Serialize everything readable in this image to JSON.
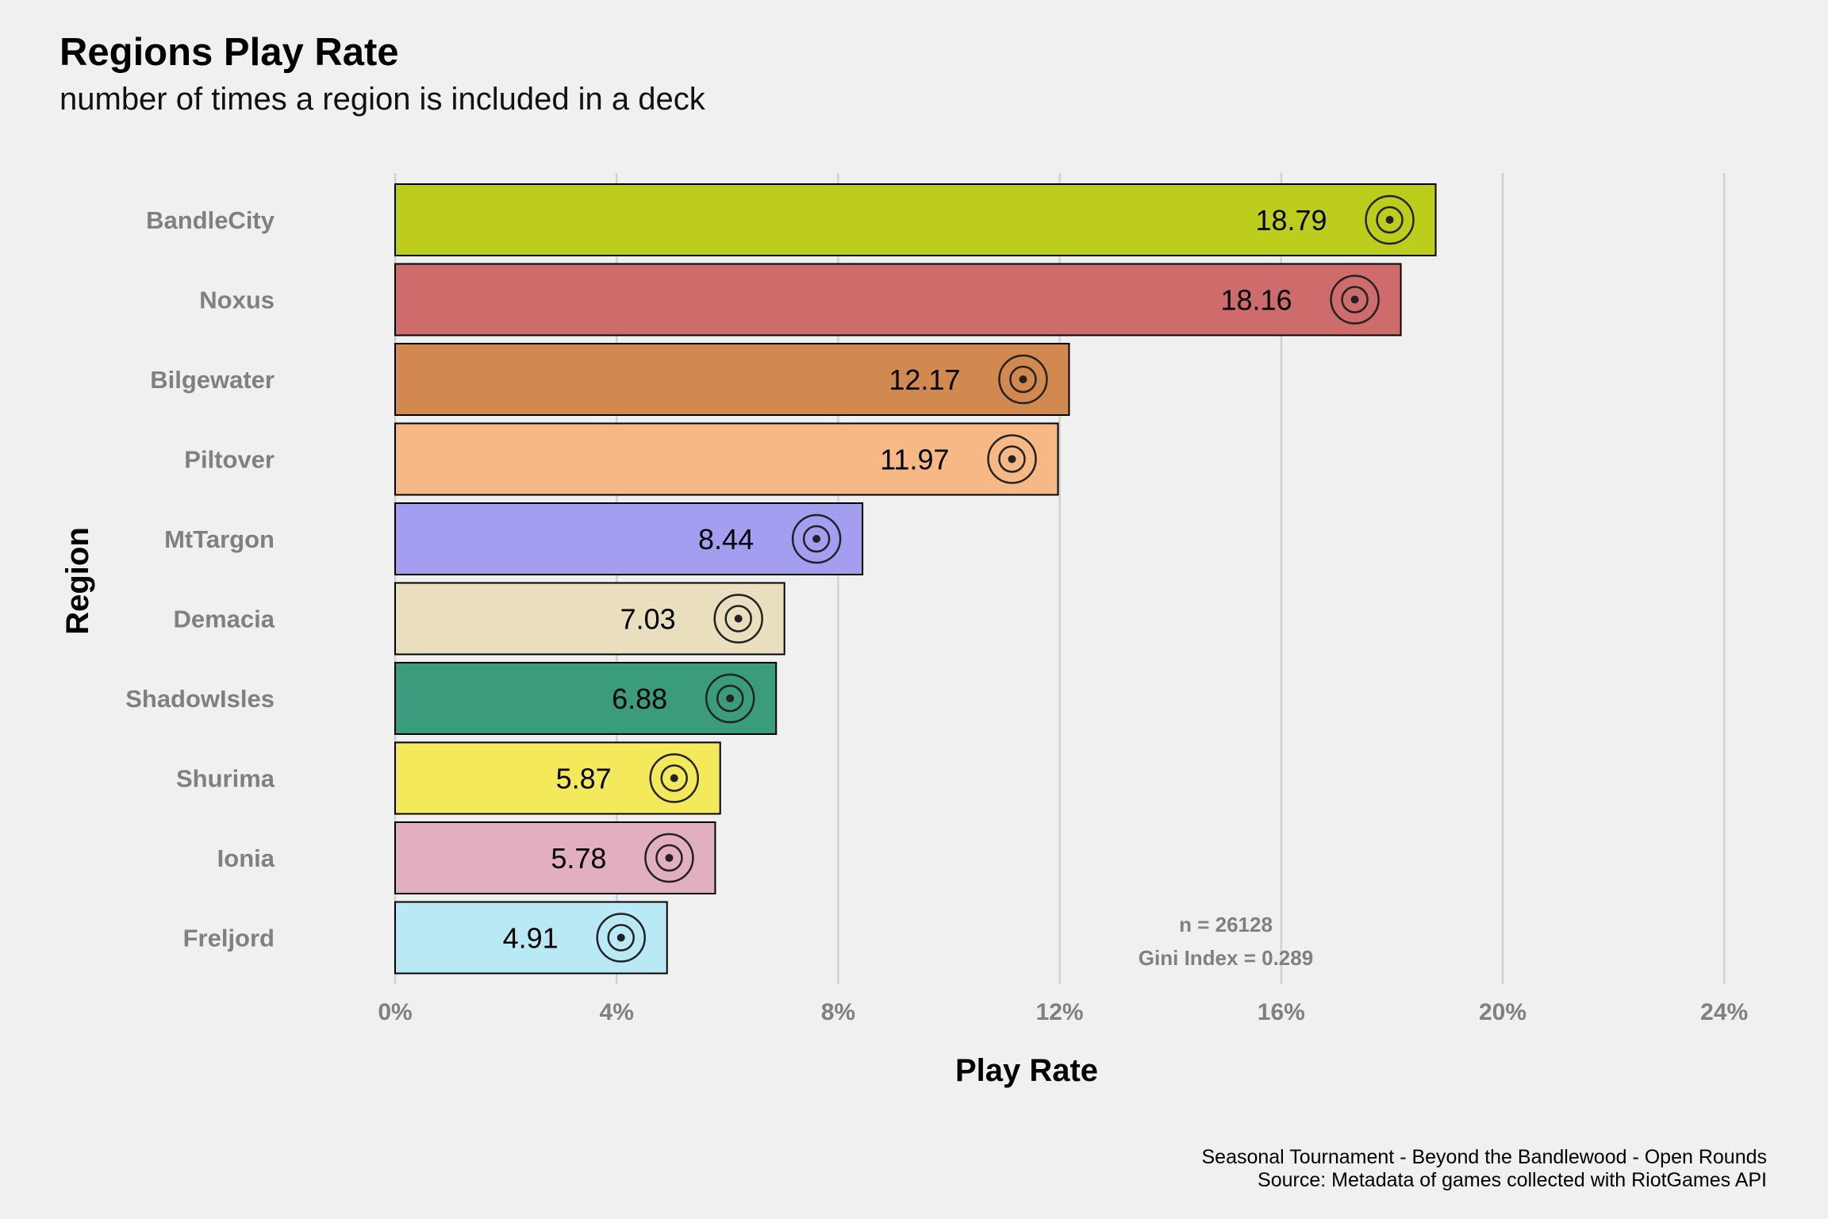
{
  "chart_data": {
    "type": "bar",
    "orientation": "horizontal",
    "title": "Regions Play Rate",
    "subtitle": "number of times a region is included in a deck",
    "xlabel": "Play Rate",
    "ylabel": "Region",
    "xlim": [
      0,
      24
    ],
    "xticks": [
      "0%",
      "4%",
      "8%",
      "12%",
      "16%",
      "20%",
      "24%"
    ],
    "grid": "vertical major",
    "categories": [
      "BandleCity",
      "Noxus",
      "Bilgewater",
      "Piltover",
      "MtTargon",
      "Demacia",
      "ShadowIsles",
      "Shurima",
      "Ionia",
      "Freljord"
    ],
    "values": [
      18.79,
      18.16,
      12.17,
      11.97,
      8.44,
      7.03,
      6.88,
      5.87,
      5.78,
      4.91
    ],
    "value_labels": [
      "18.79",
      "18.16",
      "12.17",
      "11.97",
      "8.44",
      "7.03",
      "6.88",
      "5.87",
      "5.78",
      "4.91"
    ],
    "colors": [
      "#bccd1b",
      "#cd6c6b",
      "#d2894f",
      "#f6b885",
      "#a39ef0",
      "#e9dfbf",
      "#3a9b7d",
      "#f4e95a",
      "#e1afc0",
      "#b9e9f5"
    ],
    "icons": [
      "bandlecity-icon",
      "noxus-icon",
      "bilgewater-icon",
      "piltover-icon",
      "mttargon-icon",
      "demacia-icon",
      "shadowisles-icon",
      "shurima-icon",
      "ionia-icon",
      "freljord-icon"
    ],
    "annotations": [
      "n = 26128",
      "Gini Index = 0.289"
    ],
    "caption": [
      "Seasonal Tournament - Beyond the Bandlewood - Open Rounds",
      "Source: Metadata of games collected with RiotGames API"
    ]
  }
}
